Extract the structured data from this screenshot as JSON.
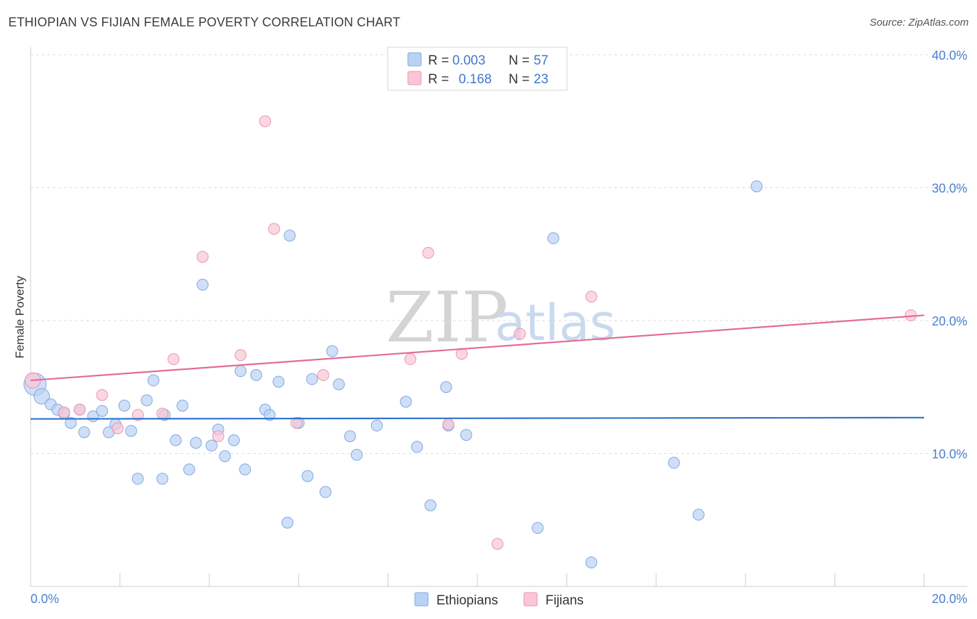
{
  "title": "ETHIOPIAN VS FIJIAN FEMALE POVERTY CORRELATION CHART",
  "source": "Source: ZipAtlas.com",
  "watermark": {
    "zip": "ZIP",
    "atlas": "atlas"
  },
  "colors": {
    "ethiopians_fill": "#b9d2f3",
    "ethiopians_stroke": "#7fa8e0",
    "ethiopians_line": "#2f72c9",
    "fijians_fill": "#f9c6d6",
    "fijians_stroke": "#eb93b1",
    "fijians_line": "#e46a95",
    "tick_label": "#4a7fcf",
    "grid": "#dddddd"
  },
  "legend": {
    "r_label": "R =",
    "n_label": "N =",
    "rows": [
      {
        "series": "Ethiopians",
        "r": "0.003",
        "n": "57"
      },
      {
        "series": "Fijians",
        "r": "0.168",
        "n": "23"
      }
    ]
  },
  "chart_data": {
    "type": "scatter",
    "title": "ETHIOPIAN VS FIJIAN FEMALE POVERTY CORRELATION CHART",
    "xlabel": "",
    "ylabel": "Female Poverty",
    "xlim": [
      0,
      20
    ],
    "ylim": [
      0,
      40
    ],
    "x_tick_labels": [
      "0.0%",
      "20.0%"
    ],
    "y_ticks": [
      10,
      20,
      30,
      40
    ],
    "y_tick_labels": [
      "10.0%",
      "20.0%",
      "30.0%",
      "40.0%"
    ],
    "grid": true,
    "legend_position": "top-center",
    "series": [
      {
        "name": "Ethiopians",
        "r": 0.003,
        "n": 57,
        "trend": {
          "x": [
            0,
            20
          ],
          "y": [
            12.6,
            12.7
          ]
        },
        "points": [
          {
            "x": 0.1,
            "y": 15.2,
            "s": 3
          },
          {
            "x": 0.25,
            "y": 14.3,
            "s": 2
          },
          {
            "x": 0.45,
            "y": 13.7
          },
          {
            "x": 0.6,
            "y": 13.3
          },
          {
            "x": 0.75,
            "y": 13.0
          },
          {
            "x": 0.9,
            "y": 12.3
          },
          {
            "x": 1.1,
            "y": 13.3
          },
          {
            "x": 1.2,
            "y": 11.6
          },
          {
            "x": 1.4,
            "y": 12.8
          },
          {
            "x": 1.6,
            "y": 13.2
          },
          {
            "x": 1.75,
            "y": 11.6
          },
          {
            "x": 1.9,
            "y": 12.2
          },
          {
            "x": 2.1,
            "y": 13.6
          },
          {
            "x": 2.25,
            "y": 11.7
          },
          {
            "x": 2.4,
            "y": 8.1
          },
          {
            "x": 2.6,
            "y": 14.0
          },
          {
            "x": 2.75,
            "y": 15.5
          },
          {
            "x": 2.95,
            "y": 8.1
          },
          {
            "x": 3.0,
            "y": 12.9
          },
          {
            "x": 3.25,
            "y": 11.0
          },
          {
            "x": 3.4,
            "y": 13.6
          },
          {
            "x": 3.55,
            "y": 8.8
          },
          {
            "x": 3.7,
            "y": 10.8
          },
          {
            "x": 3.85,
            "y": 22.7
          },
          {
            "x": 4.05,
            "y": 10.6
          },
          {
            "x": 4.2,
            "y": 11.8
          },
          {
            "x": 4.35,
            "y": 9.8
          },
          {
            "x": 4.55,
            "y": 11.0
          },
          {
            "x": 4.7,
            "y": 16.2
          },
          {
            "x": 4.8,
            "y": 8.8
          },
          {
            "x": 5.05,
            "y": 15.9
          },
          {
            "x": 5.25,
            "y": 13.3
          },
          {
            "x": 5.35,
            "y": 12.9
          },
          {
            "x": 5.55,
            "y": 15.4
          },
          {
            "x": 5.75,
            "y": 4.8
          },
          {
            "x": 5.8,
            "y": 26.4
          },
          {
            "x": 6.0,
            "y": 12.3
          },
          {
            "x": 6.2,
            "y": 8.3
          },
          {
            "x": 6.3,
            "y": 15.6
          },
          {
            "x": 6.6,
            "y": 7.1
          },
          {
            "x": 6.75,
            "y": 17.7
          },
          {
            "x": 6.9,
            "y": 15.2
          },
          {
            "x": 7.15,
            "y": 11.3
          },
          {
            "x": 7.3,
            "y": 9.9
          },
          {
            "x": 7.75,
            "y": 12.1
          },
          {
            "x": 8.4,
            "y": 13.9
          },
          {
            "x": 8.65,
            "y": 10.5
          },
          {
            "x": 8.95,
            "y": 6.1
          },
          {
            "x": 9.3,
            "y": 15.0
          },
          {
            "x": 9.35,
            "y": 12.1
          },
          {
            "x": 9.75,
            "y": 11.4
          },
          {
            "x": 11.35,
            "y": 4.4
          },
          {
            "x": 11.7,
            "y": 26.2
          },
          {
            "x": 12.55,
            "y": 1.8
          },
          {
            "x": 14.4,
            "y": 9.3
          },
          {
            "x": 14.95,
            "y": 5.4
          },
          {
            "x": 16.25,
            "y": 30.1
          }
        ]
      },
      {
        "name": "Fijians",
        "r": 0.168,
        "n": 23,
        "trend": {
          "x": [
            0,
            20
          ],
          "y": [
            15.5,
            20.4
          ]
        },
        "points": [
          {
            "x": 0.05,
            "y": 15.5,
            "s": 2
          },
          {
            "x": 0.75,
            "y": 13.1
          },
          {
            "x": 1.1,
            "y": 13.3
          },
          {
            "x": 1.6,
            "y": 14.4
          },
          {
            "x": 1.95,
            "y": 11.9
          },
          {
            "x": 2.4,
            "y": 12.9
          },
          {
            "x": 2.95,
            "y": 13.0
          },
          {
            "x": 3.2,
            "y": 17.1
          },
          {
            "x": 3.85,
            "y": 24.8
          },
          {
            "x": 4.2,
            "y": 11.3
          },
          {
            "x": 4.7,
            "y": 17.4
          },
          {
            "x": 5.25,
            "y": 35.0
          },
          {
            "x": 5.45,
            "y": 26.9
          },
          {
            "x": 5.95,
            "y": 12.3
          },
          {
            "x": 6.55,
            "y": 15.9
          },
          {
            "x": 8.5,
            "y": 17.1
          },
          {
            "x": 8.9,
            "y": 25.1
          },
          {
            "x": 9.35,
            "y": 12.2
          },
          {
            "x": 9.65,
            "y": 17.5
          },
          {
            "x": 10.45,
            "y": 3.2
          },
          {
            "x": 10.95,
            "y": 19.0
          },
          {
            "x": 12.55,
            "y": 21.8
          },
          {
            "x": 19.7,
            "y": 20.4
          }
        ]
      }
    ]
  }
}
